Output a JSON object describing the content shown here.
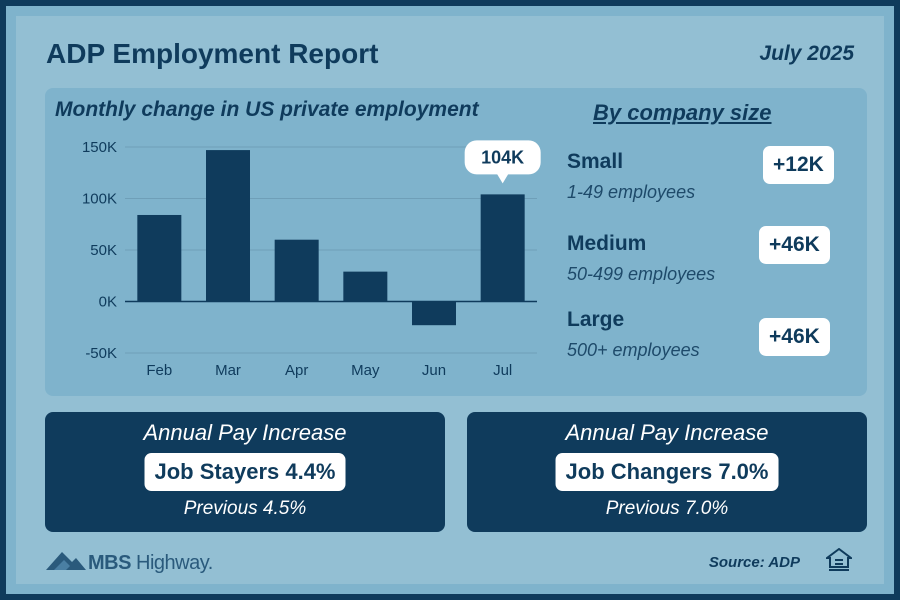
{
  "header": {
    "title": "ADP Employment Report",
    "date": "July 2025"
  },
  "chart_title": "Monthly change in US private employment",
  "chart_data": {
    "type": "bar",
    "categories": [
      "Feb",
      "Mar",
      "Apr",
      "May",
      "Jun",
      "Jul"
    ],
    "values": [
      84000,
      147000,
      60000,
      29000,
      -23000,
      104000
    ],
    "ylim": [
      -50000,
      150000
    ],
    "yticks": [
      150000,
      100000,
      50000,
      0,
      -50000
    ],
    "ytick_labels": [
      "150K",
      "100K",
      "50K",
      "0K",
      "-50K"
    ],
    "grid": true,
    "bar_color": "#0f3b5c",
    "annotation": {
      "category": "Jul",
      "text": "104K"
    }
  },
  "company_size": {
    "heading": "By company size",
    "items": [
      {
        "name": "Small",
        "desc": "1-49 employees",
        "value": "+12K"
      },
      {
        "name": "Medium",
        "desc": "50-499 employees",
        "value": "+46K"
      },
      {
        "name": "Large",
        "desc": "500+ employees",
        "value": "+46K"
      }
    ]
  },
  "pay": [
    {
      "label": "Annual Pay Increase",
      "value": "Job Stayers 4.4%",
      "previous": "Previous 4.5%"
    },
    {
      "label": "Annual Pay Increase",
      "value": "Job Changers 7.0%",
      "previous": "Previous 7.0%"
    }
  ],
  "footer": {
    "logo_bold": "MBS",
    "logo_light": " Highway",
    "logo_mark": ".",
    "source": "Source: ADP"
  },
  "colors": {
    "navy": "#0f3b5c",
    "panel": "#7fb3cc",
    "background": "#93bfd3",
    "border": "#0f3b5c"
  }
}
